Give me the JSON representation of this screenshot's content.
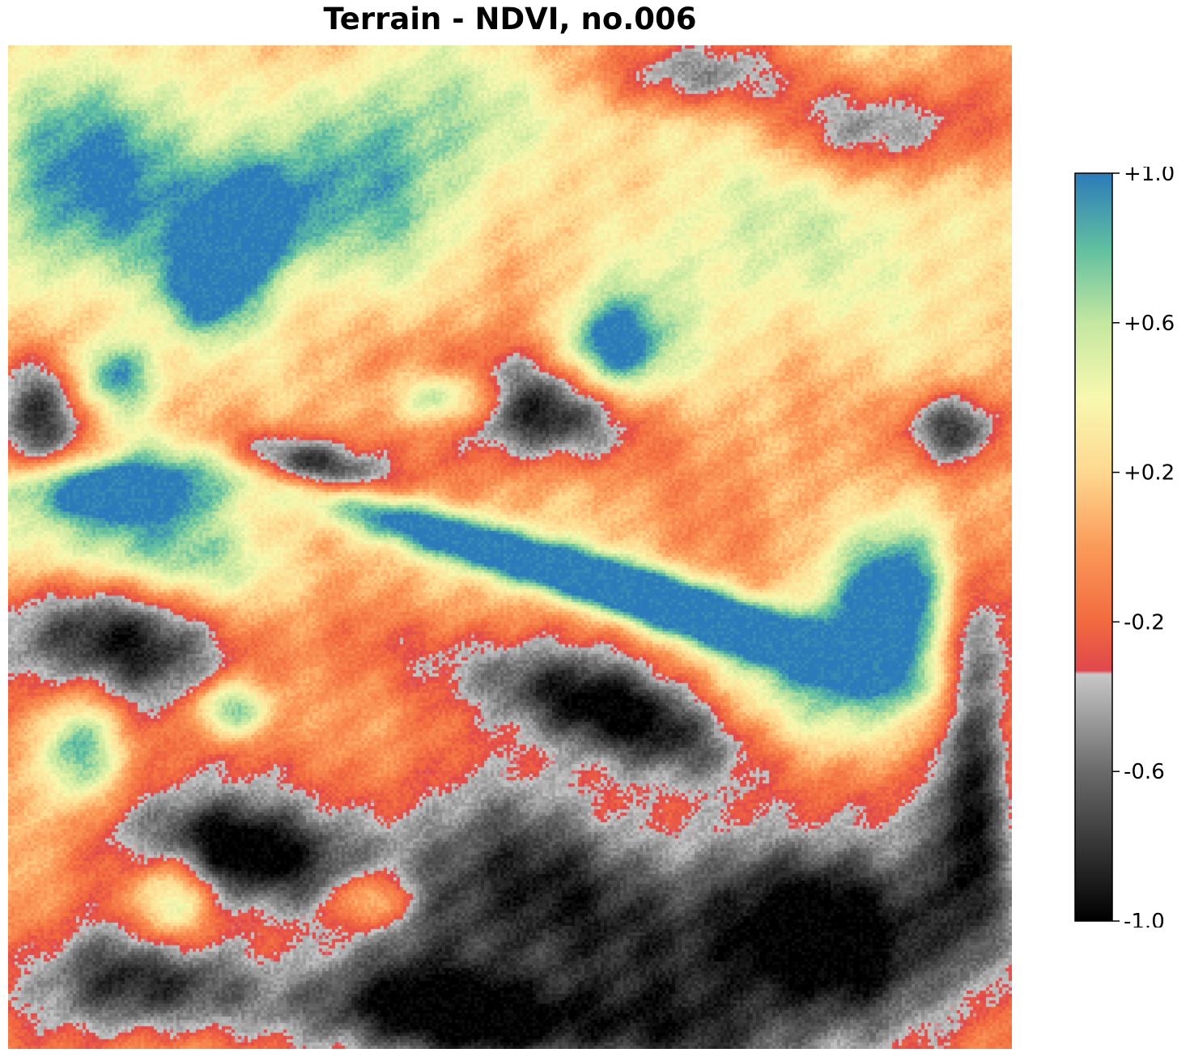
{
  "chart_data": {
    "type": "heatmap",
    "title": "Terrain - NDVI, no.006",
    "xlabel": "",
    "ylabel": "",
    "axes_visible": false,
    "grid": false,
    "value_range": [
      -1.0,
      1.0
    ],
    "colormap": {
      "stops": [
        {
          "value": -1.0,
          "color": "#000000"
        },
        {
          "value": -0.6,
          "color": "#6a6a6a"
        },
        {
          "value": -0.34,
          "color": "#c7c7c7"
        },
        {
          "value": -0.33,
          "color": "#e0474c"
        },
        {
          "value": -0.2,
          "color": "#f26a3f"
        },
        {
          "value": 0.0,
          "color": "#fb9a58"
        },
        {
          "value": 0.2,
          "color": "#fed890"
        },
        {
          "value": 0.4,
          "color": "#f8f8b0"
        },
        {
          "value": 0.6,
          "color": "#c4e7a0"
        },
        {
          "value": 0.8,
          "color": "#5fbfa0"
        },
        {
          "value": 1.0,
          "color": "#2b7bba"
        }
      ]
    },
    "colorbar": {
      "ticks": [
        1.0,
        0.6,
        0.2,
        -0.2,
        -0.6,
        -1.0
      ],
      "tick_labels": [
        "+1.0",
        "+0.6",
        "+0.2",
        "-0.2",
        "-0.6",
        "-1.0"
      ]
    },
    "grid_size": [
      64,
      64
    ]
  }
}
